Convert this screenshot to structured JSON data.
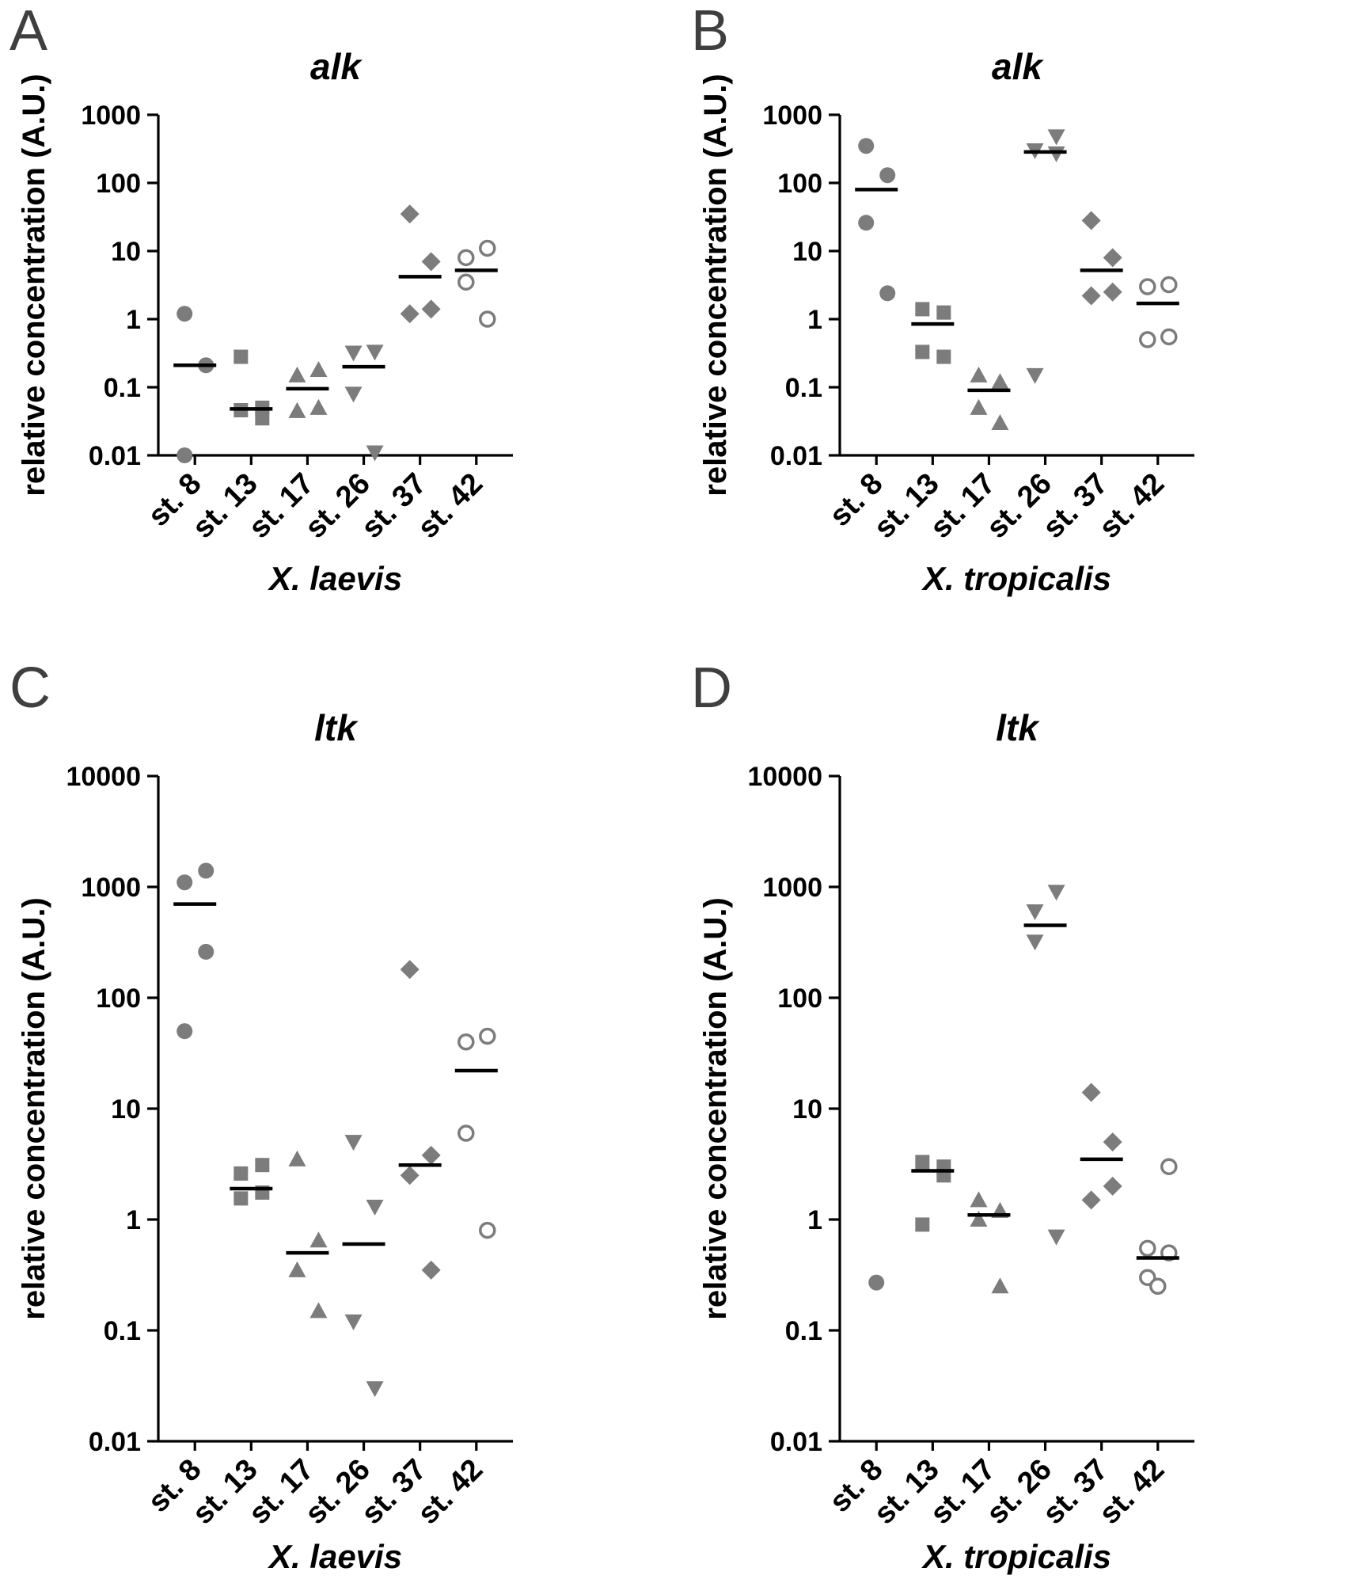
{
  "figure": {
    "description_visible_text_only": "four-panel scatter figure",
    "panel_letters": [
      "A",
      "B",
      "C",
      "D"
    ]
  },
  "chart_data": [
    {
      "type": "scatter",
      "panel_label": "A",
      "title": "alk",
      "xlabel": "X. laevis",
      "ylabel": "relative concentration (A.U.)",
      "yscale": "log",
      "ylim": [
        0.01,
        1000
      ],
      "yticks": [
        1000,
        100,
        10,
        1,
        0.1,
        0.01
      ],
      "categories": [
        "st. 8",
        "st. 13",
        "st. 17",
        "st. 26",
        "st. 37",
        "st. 42"
      ],
      "marker_shapes": [
        "circle-filled",
        "square-filled",
        "triangle-up-filled",
        "triangle-down-filled",
        "diamond-filled",
        "circle-open"
      ],
      "marker_color": "#7c7c7c",
      "median_color": "#000000",
      "legend": "none",
      "grid": "off",
      "groups": [
        {
          "category": "st. 8",
          "marker": "circle-filled",
          "values": [
            1.2,
            0.21,
            0.01
          ],
          "median": 0.21
        },
        {
          "category": "st. 13",
          "marker": "square-filled",
          "values": [
            0.28,
            0.05,
            0.046,
            0.035
          ],
          "median": 0.048
        },
        {
          "category": "st. 17",
          "marker": "triangle-up-filled",
          "values": [
            0.15,
            0.18,
            0.045,
            0.05
          ],
          "median": 0.095
        },
        {
          "category": "st. 26",
          "marker": "triangle-down-filled",
          "values": [
            0.32,
            0.33,
            0.08,
            0.011
          ],
          "median": 0.2
        },
        {
          "category": "st. 37",
          "marker": "diamond-filled",
          "values": [
            35,
            7,
            1.2,
            1.4
          ],
          "median": 4.2
        },
        {
          "category": "st. 42",
          "marker": "circle-open",
          "values": [
            8,
            11,
            3.5,
            1.0
          ],
          "median": 5.2
        }
      ]
    },
    {
      "type": "scatter",
      "panel_label": "B",
      "title": "alk",
      "xlabel": "X. tropicalis",
      "ylabel": "relative concentration (A.U.)",
      "yscale": "log",
      "ylim": [
        0.01,
        1000
      ],
      "yticks": [
        1000,
        100,
        10,
        1,
        0.1,
        0.01
      ],
      "categories": [
        "st. 8",
        "st. 13",
        "st. 17",
        "st. 26",
        "st. 37",
        "st. 42"
      ],
      "marker_shapes": [
        "circle-filled",
        "square-filled",
        "triangle-up-filled",
        "triangle-down-filled",
        "diamond-filled",
        "circle-open"
      ],
      "marker_color": "#7c7c7c",
      "median_color": "#000000",
      "legend": "none",
      "grid": "off",
      "groups": [
        {
          "category": "st. 8",
          "marker": "circle-filled",
          "values": [
            350,
            130,
            26,
            2.4
          ],
          "median": 80
        },
        {
          "category": "st. 13",
          "marker": "square-filled",
          "values": [
            1.4,
            1.25,
            0.33,
            0.28
          ],
          "median": 0.85
        },
        {
          "category": "st. 17",
          "marker": "triangle-up-filled",
          "values": [
            0.15,
            0.12,
            0.05,
            0.03
          ],
          "median": 0.09
        },
        {
          "category": "st. 26",
          "marker": "triangle-down-filled",
          "values": [
            300,
            480,
            0.15,
            270
          ],
          "median": 285
        },
        {
          "category": "st. 37",
          "marker": "diamond-filled",
          "values": [
            28,
            8,
            2.2,
            2.5
          ],
          "median": 5.2
        },
        {
          "category": "st. 42",
          "marker": "circle-open",
          "values": [
            3.0,
            3.2,
            0.5,
            0.55
          ],
          "median": 1.7
        }
      ]
    },
    {
      "type": "scatter",
      "panel_label": "C",
      "title": "ltk",
      "xlabel": "X. laevis",
      "ylabel": "relative concentration (A.U.)",
      "yscale": "log",
      "ylim": [
        0.01,
        10000
      ],
      "yticks": [
        10000,
        1000,
        100,
        10,
        1,
        0.1,
        0.01
      ],
      "categories": [
        "st. 8",
        "st. 13",
        "st. 17",
        "st. 26",
        "st. 37",
        "st. 42"
      ],
      "marker_shapes": [
        "circle-filled",
        "square-filled",
        "triangle-up-filled",
        "triangle-down-filled",
        "diamond-filled",
        "circle-open"
      ],
      "marker_color": "#7c7c7c",
      "median_color": "#000000",
      "legend": "none",
      "grid": "off",
      "groups": [
        {
          "category": "st. 8",
          "marker": "circle-filled",
          "values": [
            1100,
            1400,
            50,
            260
          ],
          "median": 700
        },
        {
          "category": "st. 13",
          "marker": "square-filled",
          "values": [
            2.6,
            3.1,
            1.55,
            1.75
          ],
          "median": 1.9
        },
        {
          "category": "st. 17",
          "marker": "triangle-up-filled",
          "values": [
            3.5,
            0.65,
            0.35,
            0.15
          ],
          "median": 0.5
        },
        {
          "category": "st. 26",
          "marker": "triangle-down-filled",
          "values": [
            5,
            1.3,
            0.12,
            0.03
          ],
          "median": 0.6
        },
        {
          "category": "st. 37",
          "marker": "diamond-filled",
          "values": [
            180,
            3.8,
            2.5,
            0.35
          ],
          "median": 3.1
        },
        {
          "category": "st. 42",
          "marker": "circle-open",
          "values": [
            40,
            45,
            6,
            0.8
          ],
          "median": 22
        }
      ]
    },
    {
      "type": "scatter",
      "panel_label": "D",
      "title": "ltk",
      "xlabel": "X. tropicalis",
      "ylabel": "relative concentration (A.U.)",
      "yscale": "log",
      "ylim": [
        0.01,
        10000
      ],
      "yticks": [
        10000,
        1000,
        100,
        10,
        1,
        0.1,
        0.01
      ],
      "categories": [
        "st. 8",
        "st. 13",
        "st. 17",
        "st. 26",
        "st. 37",
        "st. 42"
      ],
      "marker_shapes": [
        "circle-filled",
        "square-filled",
        "triangle-up-filled",
        "triangle-down-filled",
        "diamond-filled",
        "circle-open"
      ],
      "marker_color": "#7c7c7c",
      "median_color": "#000000",
      "legend": "none",
      "grid": "off",
      "groups": [
        {
          "category": "st. 8",
          "marker": "circle-filled",
          "values": [
            0.27
          ],
          "median": null
        },
        {
          "category": "st. 13",
          "marker": "square-filled",
          "values": [
            3.3,
            3.0,
            0.9,
            2.5
          ],
          "median": 2.75
        },
        {
          "category": "st. 17",
          "marker": "triangle-up-filled",
          "values": [
            1.5,
            1.2,
            1.0,
            0.25
          ],
          "median": 1.1
        },
        {
          "category": "st. 26",
          "marker": "triangle-down-filled",
          "values": [
            600,
            900,
            320,
            0.7
          ],
          "median": 450
        },
        {
          "category": "st. 37",
          "marker": "diamond-filled",
          "values": [
            14,
            5,
            1.5,
            2.0
          ],
          "median": 3.5
        },
        {
          "category": "st. 42",
          "marker": "circle-open",
          "values": [
            0.55,
            3.0,
            0.3,
            0.5,
            0.25
          ],
          "median": 0.45
        }
      ]
    }
  ]
}
